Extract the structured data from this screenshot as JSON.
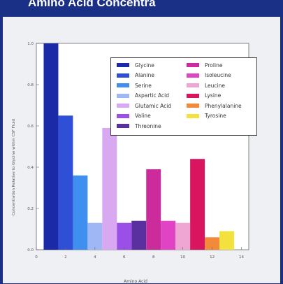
{
  "slide": {
    "title": "Amino Acid Concentra"
  },
  "chart_data": {
    "type": "bar",
    "xlabel": "Amino Acid",
    "ylabel": "Concentration Relative to Glycine within CSF Fluid",
    "ylim": [
      0,
      1.0
    ],
    "yticks": [
      "0.0",
      "0.2",
      "0.4",
      "0.6",
      "0.8",
      "1.0"
    ],
    "xticks": [
      "0",
      "2",
      "4",
      "6",
      "8",
      "10",
      "12",
      "14"
    ],
    "legend_position": "top-right",
    "series": [
      {
        "name": "Glycine",
        "value": 1.0,
        "color": "#1b2ba8"
      },
      {
        "name": "Alanine",
        "value": 0.65,
        "color": "#2f4fd6"
      },
      {
        "name": "Serine",
        "value": 0.36,
        "color": "#3f8ff0"
      },
      {
        "name": "Aspartic Acid",
        "value": 0.13,
        "color": "#9fb8f5"
      },
      {
        "name": "Glutamic Acid",
        "value": 0.59,
        "color": "#d8a9f0"
      },
      {
        "name": "Valine",
        "value": 0.13,
        "color": "#9a4fe6"
      },
      {
        "name": "Threonine",
        "value": 0.14,
        "color": "#5a2fa0"
      },
      {
        "name": "Proline",
        "value": 0.39,
        "color": "#cc2b9b"
      },
      {
        "name": "Isoleucine",
        "value": 0.14,
        "color": "#e043c4"
      },
      {
        "name": "Leucine",
        "value": 0.13,
        "color": "#f0a6d2"
      },
      {
        "name": "Lysine",
        "value": 0.44,
        "color": "#d8155e"
      },
      {
        "name": "Phenylalanine",
        "value": 0.06,
        "color": "#f28a3a"
      },
      {
        "name": "Tyrosine",
        "value": 0.09,
        "color": "#f3e23d"
      }
    ]
  }
}
